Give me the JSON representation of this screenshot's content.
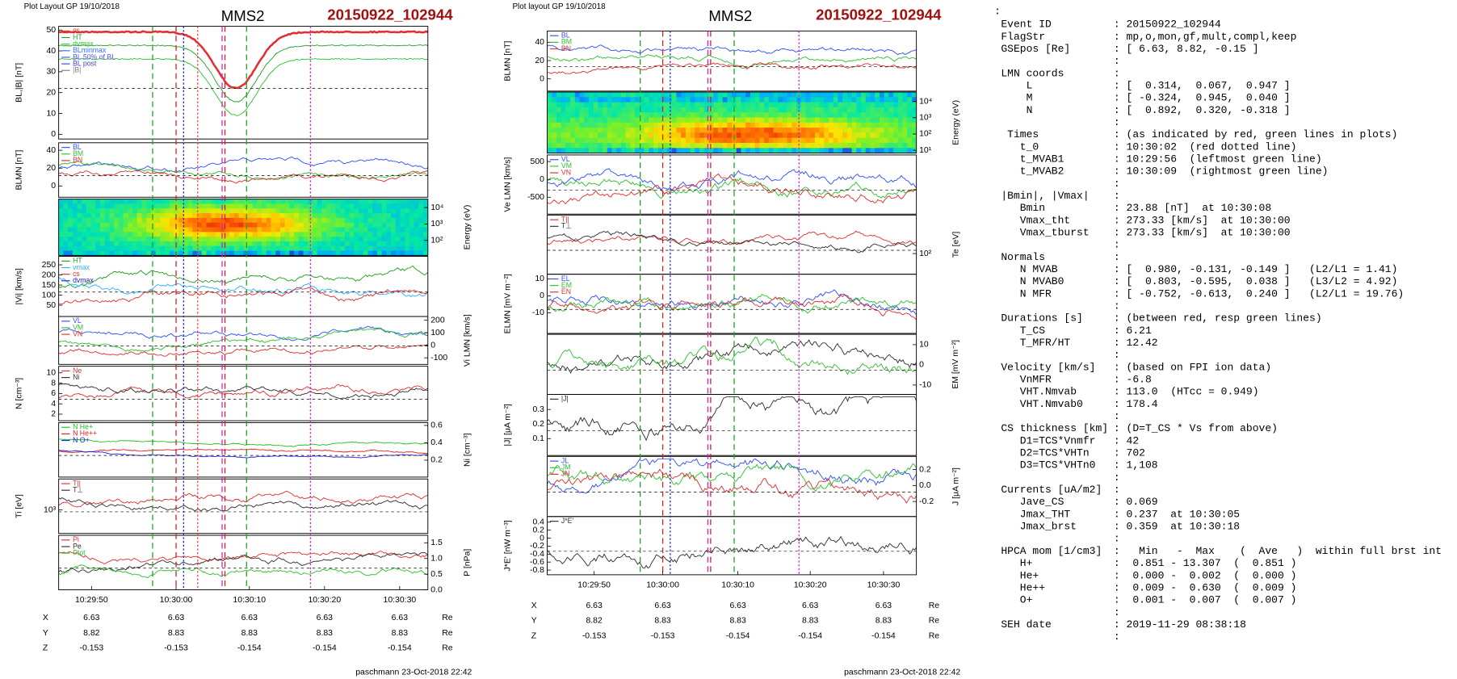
{
  "left_plot": {
    "header": "Plot Layout GP 19/10/2018",
    "title": "MMS2",
    "event": "20150922_102944",
    "panels": [
      {
        "ylabel": "BL,|B| [nT]",
        "ticks": [
          "50",
          "40",
          "30",
          "20",
          "10",
          "0"
        ],
        "legend": [
          "cs",
          "HT",
          "dvmax",
          "BLminmax",
          "BL 50% of BL",
          "BL post",
          "|B|"
        ]
      },
      {
        "ylabel": "BLMN [nT]",
        "ticks": [
          "40",
          "20",
          "0"
        ],
        "legend": [
          "BL",
          "BM",
          "BN"
        ]
      },
      {
        "ylabel": "Energy (eV)",
        "ticks": [
          "10⁴",
          "10³",
          "10²"
        ]
      },
      {
        "ylabel": "|Vi| [km/s]",
        "ticks": [
          "250",
          "200",
          "150",
          "100",
          "50"
        ],
        "legend": [
          "HT",
          "vmax",
          "cs",
          "dvmax"
        ]
      },
      {
        "ylabel": "Vi LMN [km/s]",
        "ticks": [
          "200",
          "100",
          "0",
          "-100"
        ],
        "legend": [
          "VL",
          "VM",
          "VN"
        ]
      },
      {
        "ylabel": "N [cm⁻³]",
        "ticks": [
          "10",
          "8",
          "6",
          "4",
          "2"
        ],
        "legend": [
          "Ne",
          "Ni"
        ]
      },
      {
        "ylabel": "Ni [cm⁻³]",
        "ticks": [
          "0.6",
          "0.4",
          "0.2"
        ],
        "legend": [
          "N He+",
          "N He++",
          "N O+"
        ]
      },
      {
        "ylabel": "Ti [eV]",
        "ticks": [
          "10³"
        ],
        "legend": [
          "T||",
          "T⊥"
        ]
      },
      {
        "ylabel": "P [nPa]",
        "ticks": [
          "1.5",
          "1.0",
          "0.5",
          "0.0"
        ],
        "legend": [
          "Pi",
          "Pe",
          "Ptot"
        ]
      }
    ],
    "xticks": [
      "10:29:50",
      "10:30:00",
      "10:30:10",
      "10:30:20",
      "10:30:30"
    ],
    "coords": [
      {
        "label": "X",
        "values": [
          "6.63",
          "6.63",
          "6.63",
          "6.63",
          "6.63"
        ],
        "unit": "Re"
      },
      {
        "label": "Y",
        "values": [
          "8.82",
          "8.83",
          "8.83",
          "8.83",
          "8.83"
        ],
        "unit": "Re"
      },
      {
        "label": "Z",
        "values": [
          "-0.153",
          "-0.153",
          "-0.154",
          "-0.154",
          "-0.154"
        ],
        "unit": "Re"
      }
    ],
    "footer": "paschmann 23-Oct-2018 22:42"
  },
  "right_plot": {
    "header": "Plot layout GP 19/10/2018",
    "title": "MMS2",
    "event": "20150922_102944",
    "panels": [
      {
        "ylabel": "BLMN [nT]",
        "ticks": [
          "40",
          "20",
          "0"
        ],
        "legend": [
          "BL",
          "BM",
          "BN"
        ]
      },
      {
        "ylabel": "Energy (eV)",
        "ticks": [
          "10⁴",
          "10³",
          "10²",
          "10¹"
        ]
      },
      {
        "ylabel": "Ve LMN [km/s]",
        "ticks": [
          "500",
          "0",
          "-500"
        ],
        "legend": [
          "VL",
          "VM",
          "VN"
        ]
      },
      {
        "ylabel": "Te [eV]",
        "ticks": [
          "10²"
        ],
        "legend": [
          "T||",
          "T⊥"
        ]
      },
      {
        "ylabel": "ELMN [mV m⁻²]",
        "ticks": [
          "10",
          "0",
          "-10"
        ],
        "legend": [
          "EL",
          "EM",
          "EN"
        ]
      },
      {
        "ylabel": "EM [mV m⁻²]",
        "ticks": [
          "10",
          "0",
          "-10"
        ]
      },
      {
        "ylabel": "|J| [μA m⁻²]",
        "ticks": [
          "0.3",
          "0.2",
          "0.1"
        ],
        "legend": [
          "|J|"
        ]
      },
      {
        "ylabel": "J [μA m⁻²]",
        "ticks": [
          "0.2",
          "0.0",
          "-0.2"
        ],
        "legend": [
          "JL",
          "JM",
          "JN"
        ]
      },
      {
        "ylabel": "J*E' [nW m⁻³]",
        "ticks": [
          "0.4",
          "0.2",
          "0",
          "-0.2",
          "-0.4",
          "-0.6",
          "-0.8"
        ],
        "legend": [
          "J*E'"
        ]
      }
    ],
    "xticks": [
      "10:29:50",
      "10:30:00",
      "10:30:10",
      "10:30:20",
      "10:30:30"
    ],
    "coords": [
      {
        "label": "X",
        "values": [
          "6.63",
          "6.63",
          "6.63",
          "6.63",
          "6.63"
        ],
        "unit": "Re"
      },
      {
        "label": "Y",
        "values": [
          "8.82",
          "8.83",
          "8.83",
          "8.83",
          "8.83"
        ],
        "unit": "Re"
      },
      {
        "label": "Z",
        "values": [
          "-0.153",
          "-0.153",
          "-0.154",
          "-0.154",
          "-0.154"
        ],
        "unit": "Re"
      }
    ],
    "footer": "paschmann 23-Oct-2018 22:42"
  },
  "text_panel": {
    "top_mark": ":",
    "lines": [
      {
        "k": "Event ID",
        "v": ": 20150922_102944"
      },
      {
        "k": "FlagStr",
        "v": ": mp,o,mon,gf,mult,compl,keep"
      },
      {
        "k": "GSEpos [Re]",
        "v": ": [ 6.63, 8.82, -0.15 ]"
      },
      {
        "v": ":"
      },
      {
        "k": "LMN coords",
        "v": ":"
      },
      {
        "k": "    L",
        "v": ": [  0.314,  0.067,  0.947 ]"
      },
      {
        "k": "    M",
        "v": ": [ -0.324,  0.945,  0.040 ]"
      },
      {
        "k": "    N",
        "v": ": [  0.892,  0.320, -0.318 ]"
      },
      {
        "v": ":"
      },
      {
        "k": " Times",
        "v": ": (as indicated by red, green lines in plots)"
      },
      {
        "k": "   t_0",
        "v": ": 10:30:02  (red dotted line)"
      },
      {
        "k": "   t_MVAB1",
        "v": ": 10:29:56  (leftmost green line)"
      },
      {
        "k": "   t_MVAB2",
        "v": ": 10:30:09  (rightmost green line)"
      },
      {
        "v": ":"
      },
      {
        "k": "|Bmin|, |Vmax|",
        "v": ":"
      },
      {
        "k": "   Bmin",
        "v": ": 23.88 [nT]  at 10:30:08"
      },
      {
        "k": "   Vmax_tht",
        "v": ": 273.33 [km/s]  at 10:30:00"
      },
      {
        "k": "   Vmax_tburst",
        "v": ": 273.33 [km/s]  at 10:30:00"
      },
      {
        "v": ":"
      },
      {
        "k": "Normals",
        "v": ":"
      },
      {
        "k": "   N MVAB",
        "v": ": [  0.980, -0.131, -0.149 ]   (L2/L1 = 1.41)"
      },
      {
        "k": "   N MVAB0",
        "v": ": [  0.803, -0.595,  0.038 ]   (L3/L2 = 4.92)"
      },
      {
        "k": "   N MFR",
        "v": ": [ -0.752, -0.613,  0.240 ]   (L2/L1 = 19.76)"
      },
      {
        "v": ":"
      },
      {
        "k": "Durations [s]",
        "v": ": (between red, resp green lines)"
      },
      {
        "k": "   T_CS",
        "v": ": 6.21"
      },
      {
        "k": "   T_MFR/HT",
        "v": ": 12.42"
      },
      {
        "v": ":"
      },
      {
        "k": "Velocity [km/s]",
        "v": ": (based on FPI ion data)"
      },
      {
        "k": "   VnMFR",
        "v": ": -6.8"
      },
      {
        "k": "   VHT.Nmvab",
        "v": ": 113.0  (HTcc = 0.949)"
      },
      {
        "k": "   VHT.Nmvab0",
        "v": ": 178.4"
      },
      {
        "v": ":"
      },
      {
        "k": "CS thickness [km]",
        "v": ": (D=T_CS * Vs from above)"
      },
      {
        "k": "   D1=TCS*Vnmfr",
        "v": ": 42"
      },
      {
        "k": "   D2=TCS*VHTn",
        "v": ": 702"
      },
      {
        "k": "   D3=TCS*VHTn0",
        "v": ": 1,108"
      },
      {
        "v": ":"
      },
      {
        "k": "Currents [uA/m2]",
        "v": ":"
      },
      {
        "k": "   Jave_CS",
        "v": ": 0.069"
      },
      {
        "k": "   Jmax_THT",
        "v": ": 0.237  at 10:30:05"
      },
      {
        "k": "   Jmax_brst",
        "v": ": 0.359  at 10:30:18"
      },
      {
        "v": ":"
      },
      {
        "k": "HPCA mom [1/cm3]",
        "v": ":   Min   -  Max    (  Ave   )  within full brst int"
      },
      {
        "k": "   H+",
        "v": ":  0.851 - 13.307  (  0.851 )"
      },
      {
        "k": "   He+",
        "v": ":  0.000 -  0.002  (  0.000 )"
      },
      {
        "k": "   He++",
        "v": ":  0.009 -  0.630  (  0.009 )"
      },
      {
        "k": "   O+",
        "v": ":  0.001 -  0.007  (  0.007 )"
      },
      {
        "v": ":"
      },
      {
        "k": "SEH date",
        "v": ": 2019-11-29 08:38:18"
      },
      {
        "v": ":"
      }
    ]
  }
}
